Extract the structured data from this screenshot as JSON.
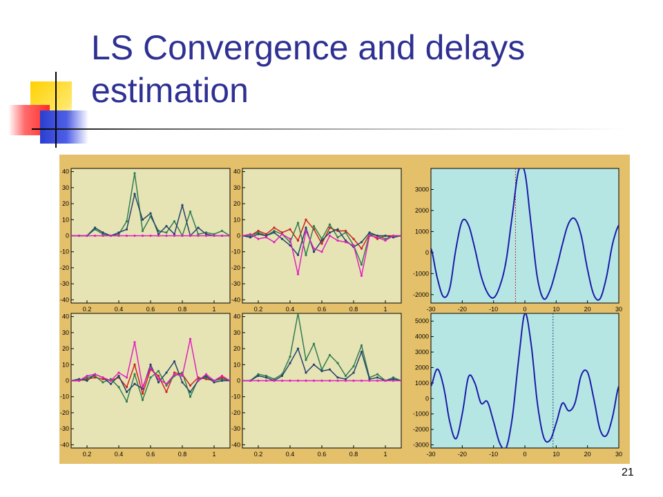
{
  "slide": {
    "title_line1": "LS Convergence and delays",
    "title_line2": "estimation",
    "page_number": "21"
  },
  "colors": {
    "title": "#2e3192",
    "figure_bg": "#e4c06a",
    "panel_bg_left": "#e6e3b4",
    "panel_bg_right": "#b5e6e4",
    "deco_yellow": "#ffd000",
    "deco_red": "#ff3b3b",
    "deco_blue": "#2b3fd0",
    "series_green": "#2e7d4f",
    "series_navy": "#22436b",
    "series_magenta": "#e020c0",
    "series_red": "#d0201c",
    "series_blue": "#1a1aa8"
  },
  "chart_data": [
    {
      "type": "line",
      "position": "top-left",
      "title": "",
      "xlabel": "",
      "ylabel": "",
      "xlim": [
        0.1,
        1.1
      ],
      "ylim": [
        -42,
        42
      ],
      "xticks": [
        "0.2",
        "0.4",
        "0.6",
        "0.8",
        "1"
      ],
      "yticks": [
        "40",
        "30",
        "20",
        "10",
        "0",
        "-10",
        "-20",
        "-30",
        "-40"
      ],
      "grid": false,
      "x": [
        0.1,
        0.15,
        0.2,
        0.25,
        0.3,
        0.35,
        0.4,
        0.45,
        0.5,
        0.55,
        0.6,
        0.65,
        0.7,
        0.75,
        0.8,
        0.85,
        0.9,
        0.95,
        1.0,
        1.05,
        1.1
      ],
      "series": [
        {
          "color": "series_green",
          "marker": true,
          "values": [
            0,
            0,
            0,
            4,
            1,
            0,
            1,
            9,
            39,
            3,
            12,
            3,
            2,
            9,
            0,
            15,
            1,
            2,
            1,
            3,
            0
          ]
        },
        {
          "color": "series_navy",
          "marker": true,
          "values": [
            0,
            0,
            0,
            5,
            2,
            0,
            2,
            4,
            26,
            10,
            14,
            1,
            6,
            1,
            19,
            0,
            5,
            1,
            0,
            0,
            0
          ]
        },
        {
          "color": "series_magenta",
          "marker": true,
          "values": [
            0,
            0,
            0,
            0,
            0,
            0,
            0,
            0,
            0,
            0,
            0,
            0,
            0,
            0,
            0,
            0,
            0,
            0,
            0,
            0,
            0
          ]
        }
      ]
    },
    {
      "type": "line",
      "position": "top-middle",
      "title": "",
      "xlabel": "",
      "ylabel": "",
      "xlim": [
        0.1,
        1.1
      ],
      "ylim": [
        -42,
        42
      ],
      "xticks": [
        "0.2",
        "0.4",
        "0.6",
        "0.8",
        "1"
      ],
      "yticks": [
        "40",
        "30",
        "20",
        "10",
        "0",
        "-10",
        "-20",
        "-30",
        "-40"
      ],
      "grid": false,
      "x": [
        0.1,
        0.15,
        0.2,
        0.25,
        0.3,
        0.35,
        0.4,
        0.45,
        0.5,
        0.55,
        0.6,
        0.65,
        0.7,
        0.75,
        0.8,
        0.85,
        0.9,
        0.95,
        1.0,
        1.05,
        1.1
      ],
      "series": [
        {
          "color": "series_red",
          "marker": true,
          "values": [
            0,
            0,
            3,
            1,
            5,
            2,
            4,
            -3,
            10,
            4,
            -5,
            5,
            3,
            3,
            -2,
            -8,
            1,
            -2,
            0,
            0,
            0
          ]
        },
        {
          "color": "series_green",
          "marker": true,
          "values": [
            0,
            0,
            2,
            0,
            3,
            1,
            -4,
            8,
            -12,
            6,
            -2,
            7,
            -1,
            2,
            -6,
            -18,
            1,
            0,
            -2,
            0,
            0
          ]
        },
        {
          "color": "series_navy",
          "marker": true,
          "values": [
            0,
            -1,
            1,
            0,
            2,
            -2,
            -6,
            -12,
            5,
            -10,
            -3,
            2,
            4,
            -3,
            -7,
            -4,
            2,
            0,
            0,
            -1,
            0
          ]
        },
        {
          "color": "series_magenta",
          "marker": true,
          "values": [
            0,
            1,
            -2,
            -1,
            -4,
            1,
            -2,
            -24,
            3,
            -8,
            -10,
            0,
            -3,
            -4,
            -6,
            -25,
            0,
            -1,
            -3,
            0,
            0
          ]
        }
      ]
    },
    {
      "type": "line",
      "position": "top-right",
      "title": "",
      "xlabel": "",
      "ylabel": "",
      "xlim": [
        -30,
        30
      ],
      "ylim": [
        -2400,
        4000
      ],
      "xticks": [
        "-30",
        "-20",
        "-10",
        "0",
        "10",
        "20",
        "30"
      ],
      "yticks": [
        "3000",
        "2000",
        "1000",
        "0",
        "-1000",
        "-2000"
      ],
      "grid": false,
      "marker_line": {
        "x": -3,
        "color": "series_red",
        "style": "dotted"
      },
      "x": [
        -30,
        -28,
        -26,
        -24,
        -22,
        -20,
        -18,
        -16,
        -14,
        -12,
        -10,
        -8,
        -6,
        -4,
        -2,
        0,
        2,
        4,
        6,
        8,
        10,
        12,
        14,
        16,
        18,
        20,
        22,
        24,
        26,
        28,
        30
      ],
      "series": [
        {
          "color": "series_blue",
          "marker": false,
          "values": [
            200,
            -1200,
            -2100,
            -1700,
            200,
            1500,
            1300,
            200,
            -1100,
            -1900,
            -2150,
            -1600,
            -400,
            1800,
            3900,
            3800,
            1300,
            -1200,
            -2200,
            -1800,
            -800,
            400,
            1400,
            1600,
            800,
            -800,
            -2000,
            -2200,
            -1200,
            400,
            1300
          ]
        }
      ]
    },
    {
      "type": "line",
      "position": "bottom-left",
      "title": "",
      "xlabel": "",
      "ylabel": "",
      "xlim": [
        0.1,
        1.1
      ],
      "ylim": [
        -42,
        42
      ],
      "xticks": [
        "0.2",
        "0.4",
        "0.6",
        "0.8",
        "1"
      ],
      "yticks": [
        "40",
        "30",
        "20",
        "10",
        "0",
        "-10",
        "-20",
        "-30",
        "-40"
      ],
      "grid": false,
      "x": [
        0.1,
        0.15,
        0.2,
        0.25,
        0.3,
        0.35,
        0.4,
        0.45,
        0.5,
        0.55,
        0.6,
        0.65,
        0.7,
        0.75,
        0.8,
        0.85,
        0.9,
        0.95,
        1.0,
        1.05,
        1.1
      ],
      "series": [
        {
          "color": "series_red",
          "marker": true,
          "values": [
            0,
            0,
            1,
            2,
            1,
            0,
            2,
            -4,
            10,
            -8,
            7,
            3,
            -7,
            5,
            4,
            -3,
            2,
            1,
            0,
            2,
            0
          ]
        },
        {
          "color": "series_green",
          "marker": true,
          "values": [
            0,
            0,
            2,
            3,
            -1,
            1,
            -4,
            -13,
            4,
            -12,
            2,
            6,
            -3,
            3,
            5,
            -10,
            1,
            2,
            0,
            1,
            0
          ]
        },
        {
          "color": "series_navy",
          "marker": true,
          "values": [
            0,
            1,
            0,
            4,
            2,
            -2,
            3,
            -7,
            -2,
            -5,
            10,
            -1,
            5,
            12,
            -1,
            -7,
            0,
            3,
            -1,
            0,
            0
          ]
        },
        {
          "color": "series_magenta",
          "marker": true,
          "values": [
            0,
            0,
            3,
            4,
            2,
            0,
            5,
            2,
            24,
            -4,
            8,
            1,
            -2,
            4,
            3,
            26,
            0,
            4,
            0,
            3,
            0
          ]
        }
      ]
    },
    {
      "type": "line",
      "position": "bottom-middle",
      "title": "",
      "xlabel": "",
      "ylabel": "",
      "xlim": [
        0.1,
        1.1
      ],
      "ylim": [
        -42,
        42
      ],
      "xticks": [
        "0.2",
        "0.4",
        "0.6",
        "0.8",
        "1"
      ],
      "yticks": [
        "40",
        "30",
        "20",
        "10",
        "0",
        "-10",
        "-20",
        "-30",
        "-40"
      ],
      "grid": false,
      "x": [
        0.1,
        0.15,
        0.2,
        0.25,
        0.3,
        0.35,
        0.4,
        0.45,
        0.5,
        0.55,
        0.6,
        0.65,
        0.7,
        0.75,
        0.8,
        0.85,
        0.9,
        0.95,
        1.0,
        1.05,
        1.1
      ],
      "series": [
        {
          "color": "series_green",
          "marker": true,
          "values": [
            0,
            0,
            4,
            3,
            1,
            4,
            15,
            42,
            13,
            23,
            7,
            16,
            11,
            3,
            9,
            22,
            2,
            4,
            0,
            2,
            0
          ]
        },
        {
          "color": "series_navy",
          "marker": true,
          "values": [
            0,
            0,
            3,
            2,
            0,
            3,
            11,
            20,
            5,
            10,
            6,
            7,
            2,
            1,
            5,
            18,
            1,
            2,
            0,
            1,
            0
          ]
        },
        {
          "color": "series_magenta",
          "marker": true,
          "values": [
            0,
            0,
            0,
            0,
            0,
            0,
            0,
            0,
            0,
            0,
            0,
            0,
            0,
            0,
            0,
            0,
            0,
            0,
            0,
            0,
            0
          ]
        }
      ]
    },
    {
      "type": "line",
      "position": "bottom-right",
      "title": "",
      "xlabel": "",
      "ylabel": "",
      "xlim": [
        -30,
        30
      ],
      "ylim": [
        -3200,
        5500
      ],
      "xticks": [
        "-30",
        "-20",
        "-10",
        "0",
        "10",
        "20",
        "30"
      ],
      "yticks": [
        "5000",
        "4000",
        "3000",
        "2000",
        "1000",
        "0",
        "-1000",
        "-2000",
        "-3000"
      ],
      "grid": false,
      "marker_line": {
        "x": 9,
        "color": "series_navy",
        "style": "dotted"
      },
      "x": [
        -30,
        -28,
        -26,
        -24,
        -22,
        -20,
        -18,
        -16,
        -14,
        -12,
        -10,
        -8,
        -6,
        -4,
        -2,
        0,
        2,
        4,
        6,
        8,
        10,
        12,
        14,
        16,
        18,
        20,
        22,
        24,
        26,
        28,
        30
      ],
      "series": [
        {
          "color": "series_blue",
          "marker": false,
          "values": [
            800,
            1900,
            800,
            -1500,
            -2600,
            -1000,
            1400,
            1000,
            -300,
            -200,
            -1500,
            -2900,
            -3200,
            -1200,
            2500,
            5500,
            3500,
            -300,
            -2500,
            -2700,
            -1600,
            -300,
            -800,
            -300,
            1500,
            1700,
            0,
            -2000,
            -2400,
            -1200,
            800
          ]
        }
      ]
    }
  ]
}
